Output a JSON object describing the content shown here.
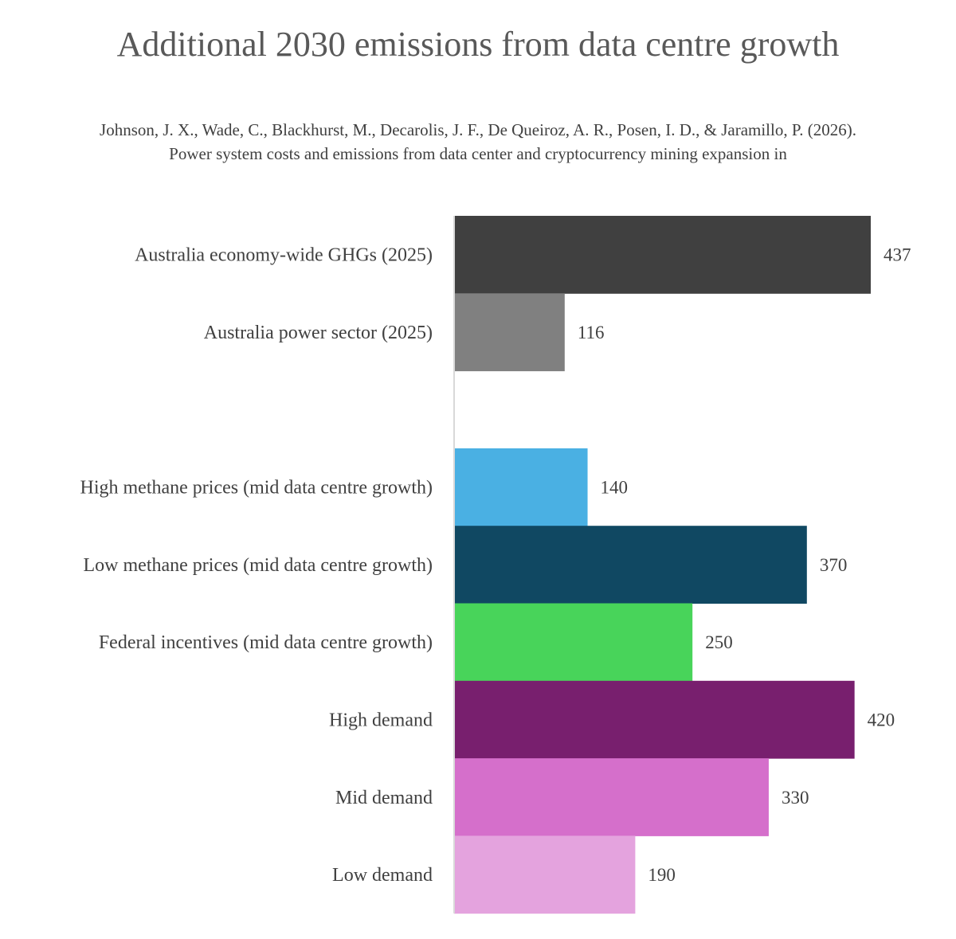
{
  "chart_data": {
    "type": "bar",
    "orientation": "horizontal",
    "title": "Additional 2030 emissions from data centre growth",
    "subtitle": "Johnson, J. X., Wade, C., Blackhurst, M., Decarolis, J. F., De Queiroz, A. R., Posen, I. D., & Jaramillo, P. (2026). Power system costs and emissions from data center and cryptocurrency mining expansion in",
    "xlabel": "",
    "ylabel": "",
    "xlim": [
      0,
      437
    ],
    "grid": false,
    "legend": "none",
    "categories": [
      "Australia economy-wide GHGs (2025)",
      "Australia power sector (2025)",
      "",
      "High methane prices (mid data centre growth)",
      "Low methane prices (mid data centre growth)",
      "Federal incentives (mid data centre growth)",
      "High demand",
      "Mid demand",
      "Low demand"
    ],
    "values": [
      437,
      116,
      null,
      140,
      370,
      250,
      420,
      330,
      190
    ],
    "data_labels": [
      "437",
      "116",
      "",
      "140",
      "370",
      "250",
      "420",
      "330",
      "190"
    ],
    "colors": [
      "#404040",
      "#808080",
      "",
      "#4AB0E3",
      "#104862",
      "#48D45A",
      "#781F6E",
      "#D56FCB",
      "#E4A3DE"
    ]
  },
  "colors": {
    "axis_line": "#d9d9d9",
    "title": "#595959",
    "text": "#404040"
  }
}
